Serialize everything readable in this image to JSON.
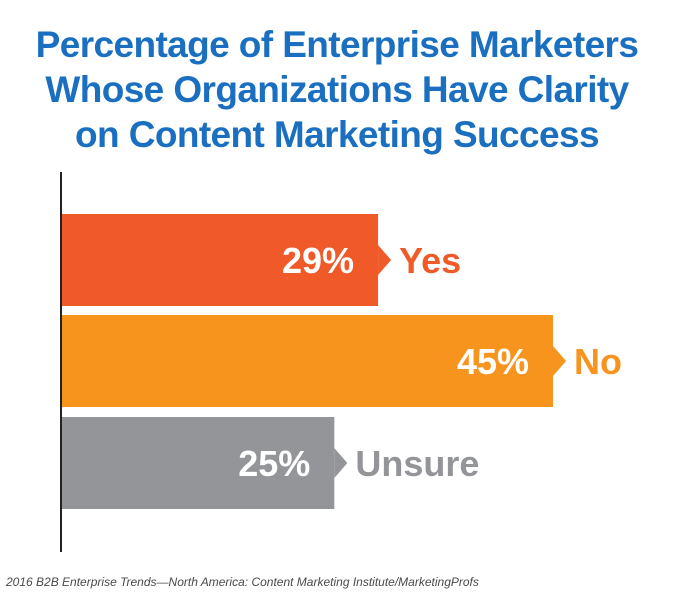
{
  "title_lines": [
    "Percentage of Enterprise Marketers",
    "Whose Organizations Have Clarity",
    "on Content Marketing Success"
  ],
  "source": "2016 B2B Enterprise Trends—North America: Content Marketing Institute/MarketingProfs",
  "colors": {
    "title": "#1a6fc0",
    "axis": "#222222",
    "value_text": "#ffffff"
  },
  "chart_data": {
    "type": "bar",
    "orientation": "horizontal",
    "title": "Percentage of Enterprise Marketers Whose Organizations Have Clarity on Content Marketing Success",
    "categories": [
      "Yes",
      "No",
      "Unsure"
    ],
    "values": [
      29,
      45,
      25
    ],
    "value_labels": [
      "29%",
      "45%",
      "25%"
    ],
    "bar_colors": [
      "#f05a28",
      "#f7941e",
      "#939598"
    ],
    "category_label_colors": [
      "#f05a28",
      "#f7941e",
      "#939598"
    ],
    "unit": "%",
    "xlim": [
      0,
      45
    ],
    "grid": false,
    "legend": "none"
  }
}
